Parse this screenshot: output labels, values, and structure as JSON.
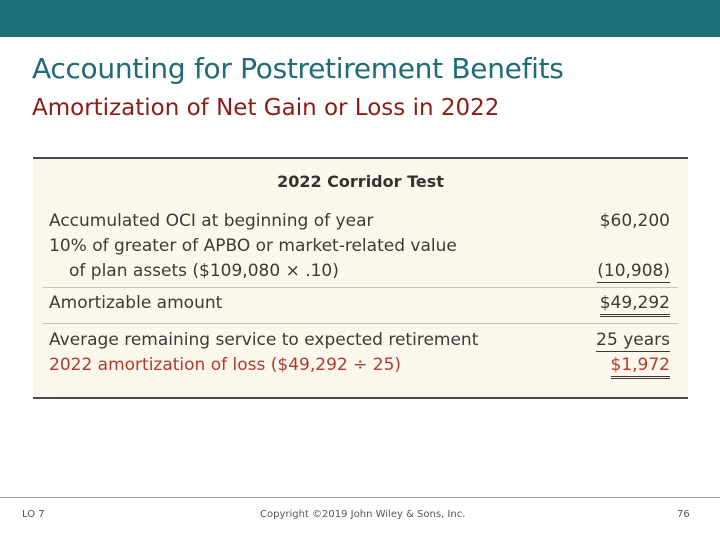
{
  "slide": {
    "title": "Accounting for Postretirement Benefits",
    "subtitle": "Amortization of Net Gain or Loss in 2022"
  },
  "table": {
    "title": "2022 Corridor Test",
    "rows": [
      {
        "label": "Accumulated OCI at beginning of year",
        "value": "$60,200"
      },
      {
        "label": "10% of greater of APBO or market-related value",
        "value": ""
      },
      {
        "label": "of plan assets ($109,080 × .10)",
        "value": "(10,908)"
      },
      {
        "label": "Amortizable amount",
        "value": "$49,292"
      },
      {
        "label": "Average remaining service to expected retirement",
        "value": "25 years"
      },
      {
        "label": "2022 amortization of loss ($49,292 ÷ 25)",
        "value": "$1,972"
      }
    ]
  },
  "footer": {
    "lo": "LO 7",
    "copyright": "Copyright ©2019 John Wiley & Sons, Inc.",
    "page": "76"
  },
  "colors": {
    "bar": "#1b6f78",
    "title": "#1f6c78",
    "subtitle": "#8a1c14",
    "highlight": "#b03a2e",
    "card_bg": "#fbf7ec"
  }
}
